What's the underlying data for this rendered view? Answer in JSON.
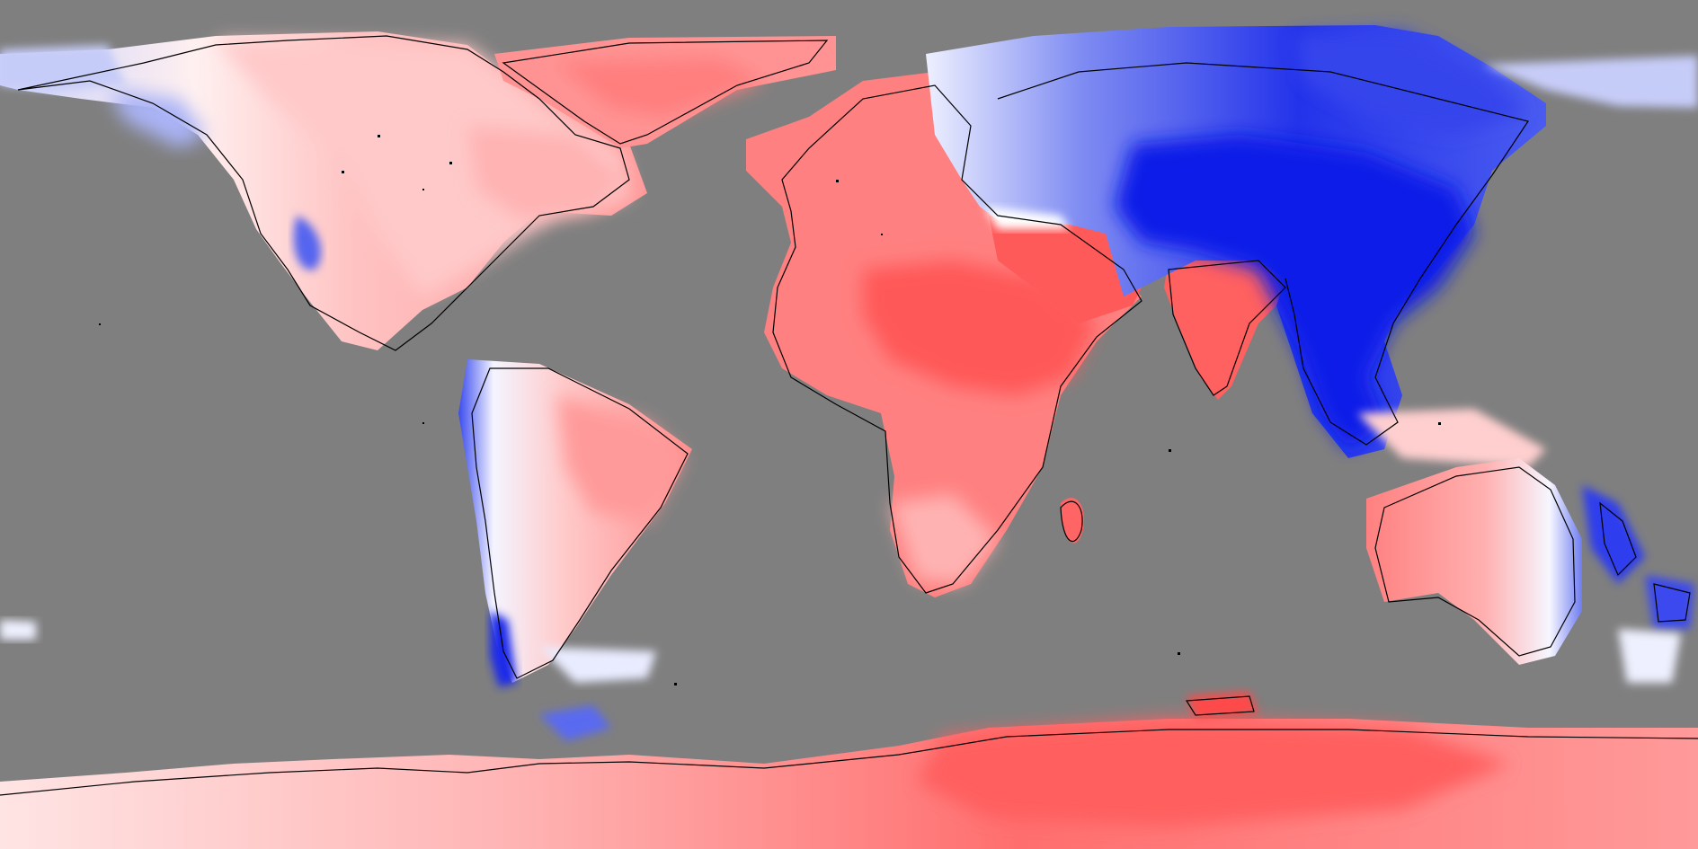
{
  "map": {
    "type": "global-land-anomaly-map",
    "projection": "equirectangular",
    "ocean_color": "#7f7f7f",
    "coastline_color": "#000000",
    "color_scale": {
      "negative_strong": "#0a14e6",
      "negative": "#5a6cf0",
      "negative_weak": "#b9c0f7",
      "neutral": "#fff1f1",
      "positive_weak": "#ffc0c0",
      "positive": "#ff8a8a",
      "positive_strong": "#ff4a4a"
    }
  }
}
